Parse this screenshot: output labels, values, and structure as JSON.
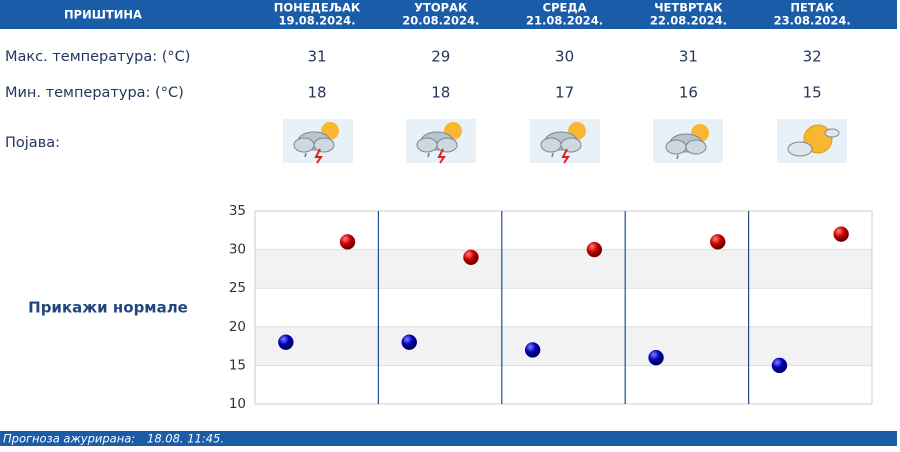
{
  "header": {
    "city": "ПРИШТИНА",
    "days": [
      {
        "name": "ПОНЕДЕЉАК",
        "date": "19.08.2024."
      },
      {
        "name": "УТОРАК",
        "date": "20.08.2024."
      },
      {
        "name": "СРЕДА",
        "date": "21.08.2024."
      },
      {
        "name": "ЧЕТВРТАК",
        "date": "22.08.2024."
      },
      {
        "name": "ПЕТАК",
        "date": "23.08.2024."
      }
    ]
  },
  "table": {
    "phenomenon_label": "Појава:"
  },
  "chart_data": {
    "type": "scatter",
    "series": [
      {
        "name": "Макс. температура: (°C)",
        "color": "#cc0000",
        "values": [
          31,
          29,
          30,
          31,
          32
        ]
      },
      {
        "name": "Мин. температура: (°C)",
        "color": "#0000bb",
        "values": [
          18,
          18,
          17,
          16,
          15
        ]
      }
    ],
    "ylim": [
      10,
      35
    ],
    "yticks": [
      10,
      15,
      20,
      25,
      30,
      35
    ],
    "grid": true
  },
  "link": "Прикажи нормале",
  "footer": {
    "label": "Прогноза ажурирана:",
    "updated": "18.08. 11:45."
  }
}
